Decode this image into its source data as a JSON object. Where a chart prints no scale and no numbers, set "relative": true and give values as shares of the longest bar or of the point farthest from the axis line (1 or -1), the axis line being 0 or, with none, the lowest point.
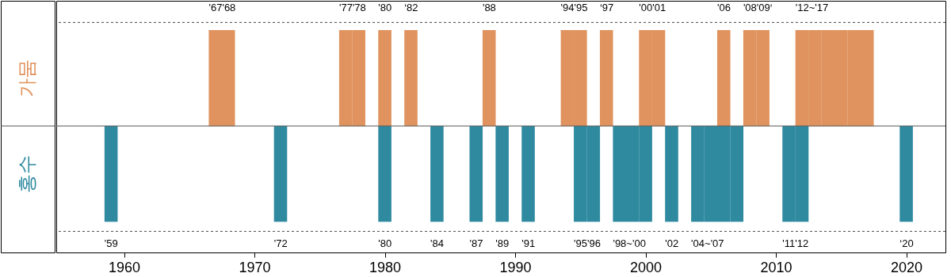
{
  "chart_data": {
    "type": "bar",
    "relative": true,
    "series": [
      {
        "name": "가뭄",
        "color": "#e0935e",
        "x": [
          1967,
          1968,
          1977,
          1978,
          1980,
          1982,
          1988,
          1994,
          1995,
          1997,
          2000,
          2001,
          2006,
          2008,
          2009,
          2012,
          2013,
          2014,
          2015,
          2016,
          2017
        ],
        "values": [
          1,
          1,
          1,
          1,
          1,
          1,
          1,
          1,
          1,
          1,
          1,
          1,
          1,
          1,
          1,
          1,
          1,
          1,
          1,
          1,
          1
        ]
      },
      {
        "name": "홍수",
        "color": "#2f8aa0",
        "x": [
          1959,
          1972,
          1980,
          1984,
          1987,
          1989,
          1991,
          1995,
          1996,
          1998,
          1999,
          2000,
          2002,
          2004,
          2005,
          2006,
          2007,
          2011,
          2012,
          2020
        ],
        "values": [
          -1,
          -1,
          -1,
          -1,
          -1,
          -1,
          -1,
          -1,
          -1,
          -1,
          -1,
          -1,
          -1,
          -1,
          -1,
          -1,
          -1,
          -1,
          -1,
          -1
        ]
      }
    ],
    "xlim": [
      1955.1,
      2022.7
    ],
    "xticks": [
      1960,
      1970,
      1980,
      1990,
      2000,
      2010,
      2020
    ],
    "ref_lines": [
      {
        "axis": "y",
        "value": 1.08,
        "line_style": "dashed"
      },
      {
        "axis": "y",
        "value": -1.1,
        "line_style": "dashed"
      }
    ],
    "annotations": [
      {
        "text": "'67'68",
        "x": 1967,
        "y": 1
      },
      {
        "text": "'77'78",
        "x": 1977,
        "y": 1
      },
      {
        "text": "'80",
        "x": 1980,
        "y": 1
      },
      {
        "text": "‘82",
        "x": 1982,
        "y": 1
      },
      {
        "text": "'88",
        "x": 1988,
        "y": 1
      },
      {
        "text": "'94'95",
        "x": 1994,
        "y": 1
      },
      {
        "text": "‘97",
        "x": 1997,
        "y": 1
      },
      {
        "text": "'00'01",
        "x": 2000,
        "y": 1
      },
      {
        "text": "'06",
        "x": 2006,
        "y": 1
      },
      {
        "text": "'08'09‘",
        "x": 2008,
        "y": 1
      },
      {
        "text": "'12~'17",
        "x": 2012,
        "y": 1
      },
      {
        "text": "'59",
        "x": 1959,
        "y": -1
      },
      {
        "text": "'72",
        "x": 1972,
        "y": -1
      },
      {
        "text": "'80",
        "x": 1980,
        "y": -1
      },
      {
        "text": "'84",
        "x": 1984,
        "y": -1
      },
      {
        "text": "'87",
        "x": 1987,
        "y": -1
      },
      {
        "text": "'89",
        "x": 1989,
        "y": -1
      },
      {
        "text": "'91",
        "x": 1991,
        "y": -1
      },
      {
        "text": "'95'96",
        "x": 1995,
        "y": -1
      },
      {
        "text": "'98~'00",
        "x": 1998,
        "y": -1
      },
      {
        "text": "'02",
        "x": 2002,
        "y": -1
      },
      {
        "text": "'04~'07",
        "x": 2004,
        "y": -1
      },
      {
        "text": "'11'12",
        "x": 2011,
        "y": -1
      },
      {
        "text": "‘20",
        "x": 2020,
        "y": -1
      }
    ]
  }
}
